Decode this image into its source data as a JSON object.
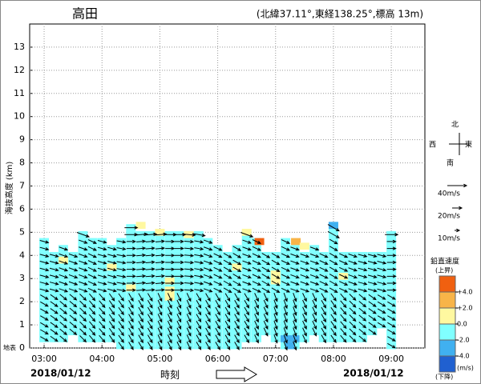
{
  "chart_data": {
    "type": "profiler",
    "title": "高田",
    "subtitle": "(北緯37.11°,東経138.25°,標高 13m)",
    "ylabel": "海抜高度 (km)",
    "xlabel": "時刻",
    "date_left": "2018/01/12",
    "date_right": "2018/01/12",
    "ground_label": "地表",
    "xlim": [
      2.75,
      9.58
    ],
    "xticks": [
      {
        "value": 3,
        "label": "03:00"
      },
      {
        "value": 4,
        "label": "04:00"
      },
      {
        "value": 5,
        "label": "05:00"
      },
      {
        "value": 6,
        "label": "06:00"
      },
      {
        "value": 7,
        "label": "07:00"
      },
      {
        "value": 8,
        "label": "08:00"
      },
      {
        "value": 9,
        "label": "09:00"
      }
    ],
    "ylim": [
      0,
      14
    ],
    "yticks": [
      0,
      1,
      2,
      3,
      4,
      5,
      6,
      7,
      8,
      9,
      10,
      11,
      12,
      13
    ],
    "grid": true,
    "x": [
      3.0,
      3.17,
      3.33,
      3.5,
      3.67,
      3.83,
      4.0,
      4.17,
      4.33,
      4.5,
      4.67,
      4.83,
      5.0,
      5.17,
      5.33,
      5.5,
      5.67,
      5.83,
      6.0,
      6.17,
      6.33,
      6.5,
      6.67,
      6.83,
      7.0,
      7.17,
      7.33,
      7.5,
      7.67,
      7.83,
      8.0,
      8.17,
      8.33,
      8.5,
      8.67,
      8.83,
      9.0
    ],
    "bottom": [
      0.4,
      0.4,
      0.4,
      0.7,
      0.4,
      0.4,
      0.4,
      0.4,
      0.1,
      0.1,
      0.1,
      0.1,
      0.1,
      0.1,
      0.1,
      0.1,
      0.1,
      0.1,
      0.1,
      0.1,
      0.1,
      0.4,
      0.4,
      0.7,
      0.4,
      0.1,
      0.1,
      0.4,
      0.7,
      0.4,
      0.4,
      0.4,
      0.4,
      0.4,
      0.7,
      1.0,
      0.1
    ],
    "top": [
      4.8,
      4.0,
      4.3,
      4.0,
      4.9,
      4.6,
      4.8,
      4.5,
      4.8,
      5.3,
      5.0,
      5.0,
      5.0,
      5.0,
      5.0,
      5.0,
      5.0,
      4.6,
      4.3,
      4.0,
      4.4,
      5.0,
      4.7,
      4.0,
      4.2,
      4.6,
      4.5,
      4.2,
      4.5,
      4.0,
      5.3,
      4.0,
      4.2,
      4.2,
      4.2,
      4.0,
      5.0
    ],
    "dir_low": [
      300,
      305,
      310,
      310,
      315,
      320,
      320,
      325,
      325,
      330,
      330,
      330,
      335,
      335,
      335,
      335,
      330,
      330,
      330,
      330,
      330,
      330,
      335,
      335,
      340,
      340,
      340,
      335,
      335,
      330,
      325,
      320,
      315,
      310,
      305,
      300,
      300
    ],
    "dir_high": [
      285,
      285,
      290,
      290,
      290,
      295,
      285,
      285,
      280,
      270,
      265,
      265,
      265,
      270,
      270,
      275,
      280,
      290,
      295,
      300,
      300,
      290,
      295,
      300,
      300,
      295,
      290,
      290,
      290,
      295,
      300,
      295,
      290,
      285,
      285,
      285,
      270
    ],
    "vertical": [
      {
        "time": 4.67,
        "height": 5.3,
        "w": 1
      },
      {
        "time": 5.0,
        "height": 5.0,
        "w": 1
      },
      {
        "time": 5.5,
        "height": 4.9,
        "w": 1
      },
      {
        "time": 6.5,
        "height": 5.0,
        "w": 1
      },
      {
        "time": 6.72,
        "height": 4.6,
        "w": 4.5
      },
      {
        "time": 7.35,
        "height": 4.6,
        "w": 3
      },
      {
        "time": 7.5,
        "height": 4.4,
        "w": 1
      },
      {
        "time": 7.0,
        "height": 3.2,
        "w": 1
      },
      {
        "time": 7.0,
        "height": 2.9,
        "w": 1
      },
      {
        "time": 5.17,
        "height": 2.9,
        "w": 1
      },
      {
        "time": 5.17,
        "height": 2.5,
        "w": 1
      },
      {
        "time": 5.17,
        "height": 2.2,
        "w": 1
      },
      {
        "time": 3.33,
        "height": 3.8,
        "w": 1
      },
      {
        "time": 4.17,
        "height": 3.5,
        "w": 1
      },
      {
        "time": 4.5,
        "height": 2.6,
        "w": 1
      },
      {
        "time": 6.33,
        "height": 3.5,
        "w": 1
      },
      {
        "time": 8.17,
        "height": 3.1,
        "w": 1
      },
      {
        "time": 8.0,
        "height": 5.3,
        "w": -3
      },
      {
        "time": 7.17,
        "height": 0.4,
        "w": -3
      },
      {
        "time": 7.33,
        "height": 0.4,
        "w": -3
      },
      {
        "time": 7.25,
        "height": 0.1,
        "w": -3
      }
    ],
    "compass": {
      "north": "北",
      "east": "東",
      "south": "南",
      "west": "西"
    },
    "speed_legend": [
      {
        "value": 40,
        "label": "40m/s"
      },
      {
        "value": 20,
        "label": "20m/s"
      },
      {
        "value": 10,
        "label": "10m/s"
      }
    ],
    "color_legend_title": "鉛直速度",
    "color_legend_up": "(上昇)",
    "color_legend_down": "(下降)",
    "color_legend_unit": "(m/s)",
    "color_bins": [
      {
        "value": 4,
        "label": "+4.0"
      },
      {
        "value": 2,
        "label": "+2.0"
      },
      {
        "value": 0,
        "label": "0.0"
      },
      {
        "value": -2,
        "label": "-2.0"
      },
      {
        "value": -4,
        "label": "-4.0"
      }
    ],
    "colors": [
      "#f06010",
      "#f8b448",
      "#fff8a0",
      "#80ffff",
      "#40b0f0",
      "#2060d0"
    ]
  }
}
